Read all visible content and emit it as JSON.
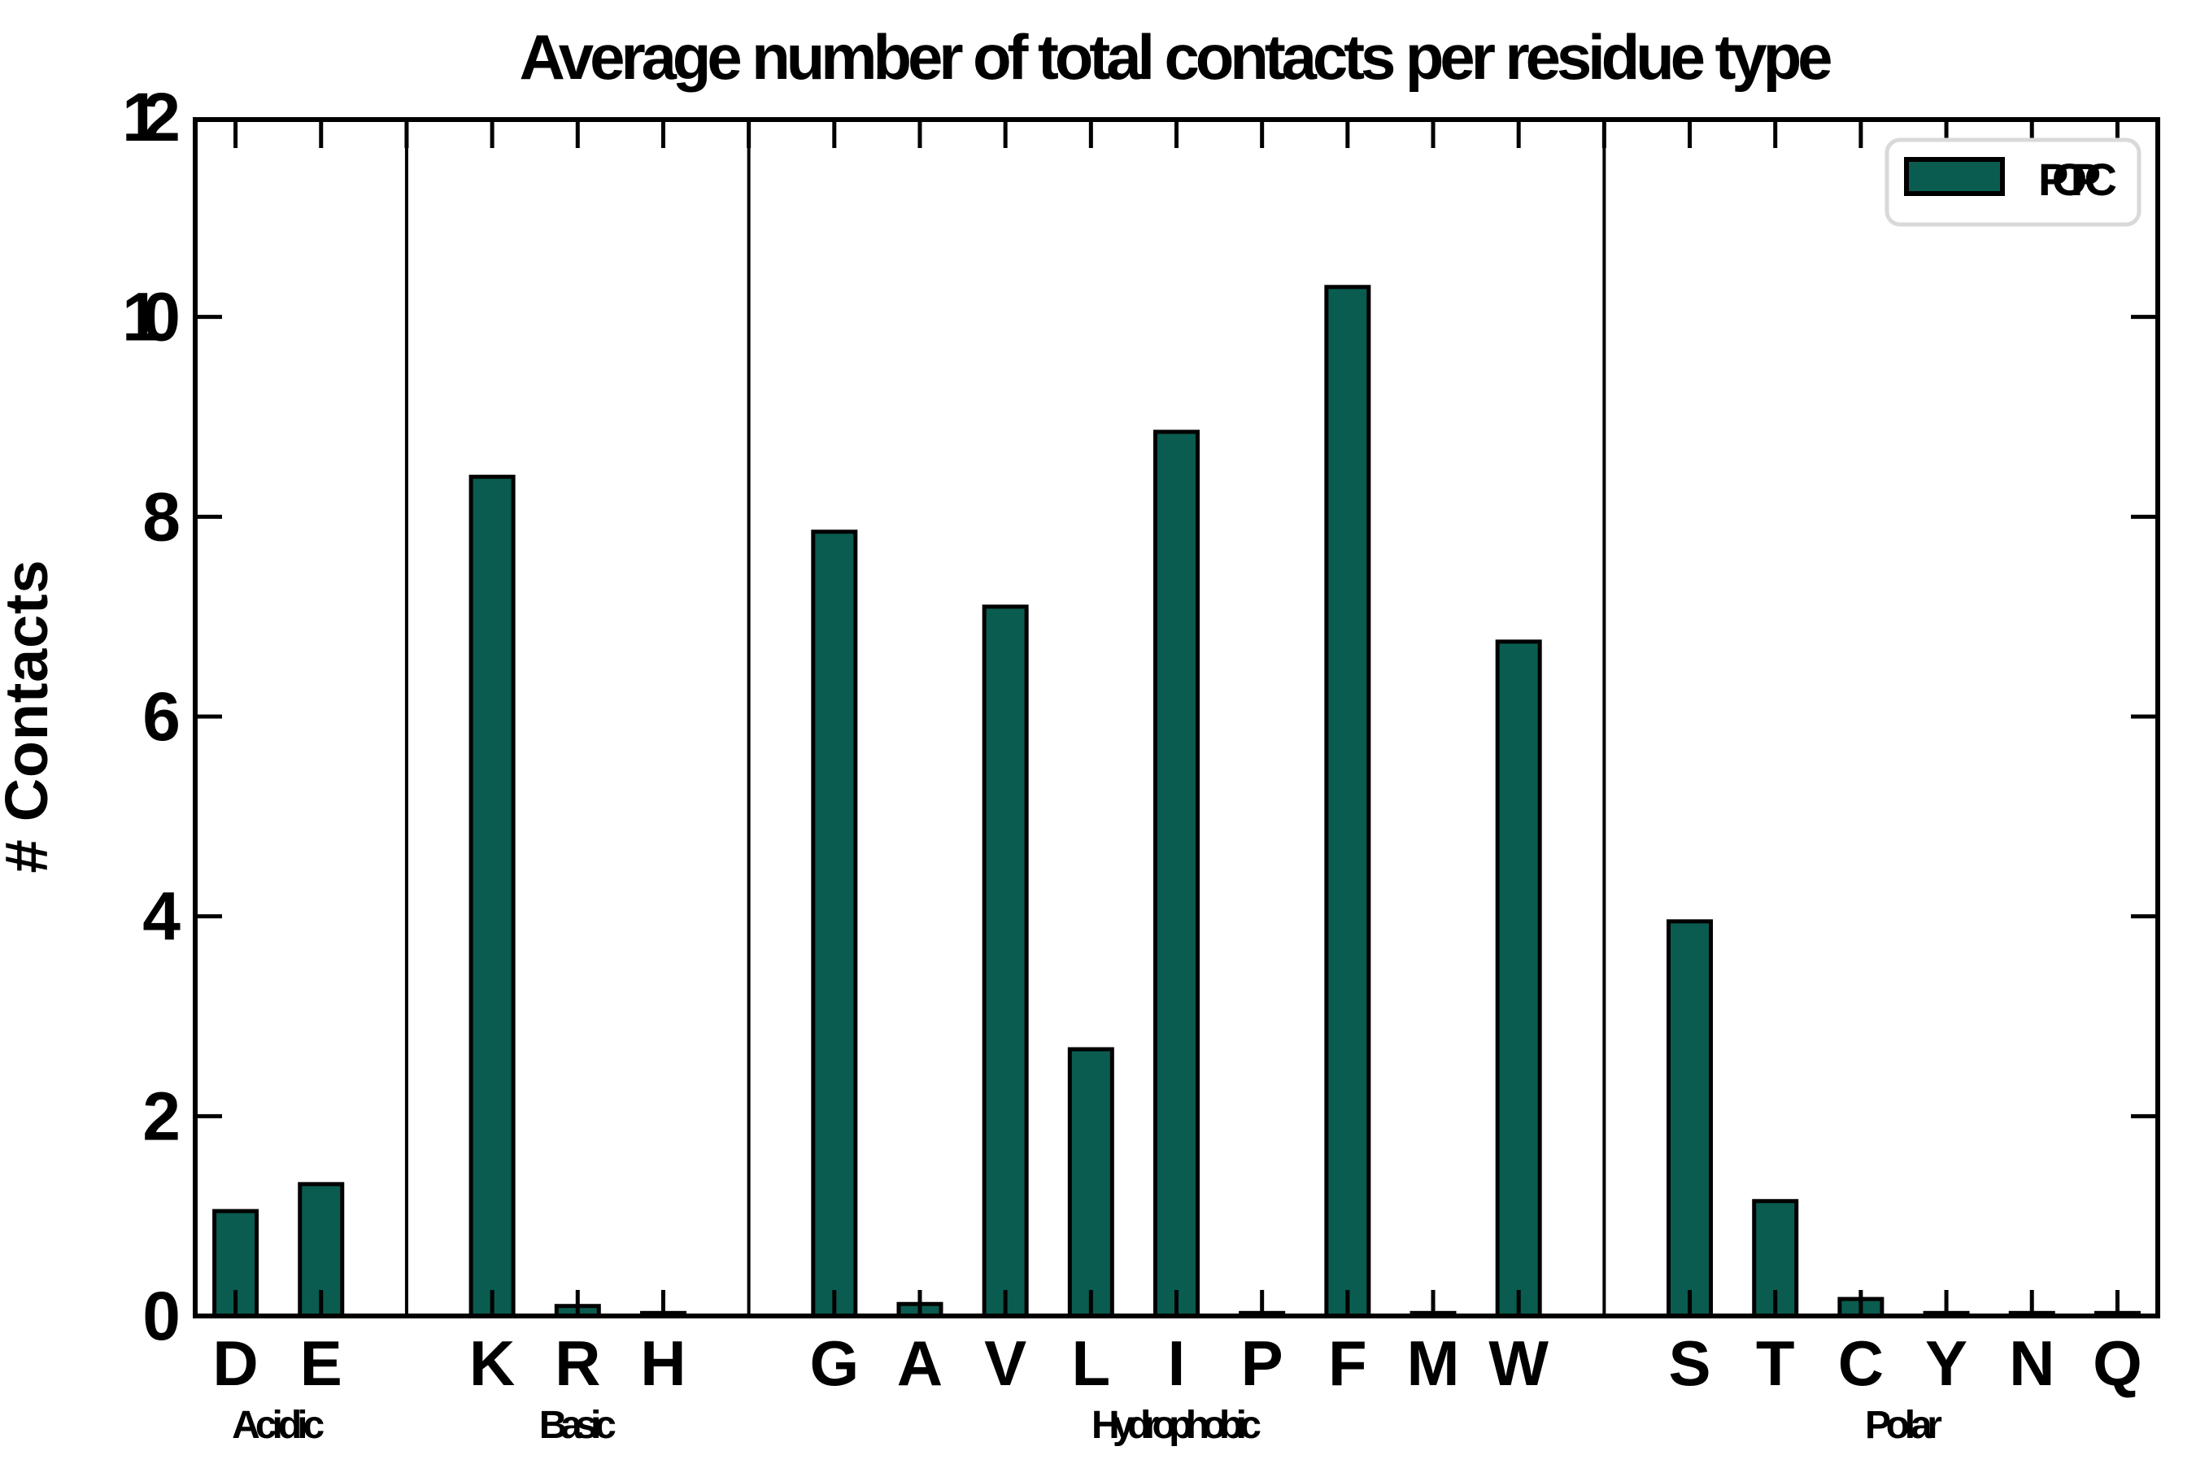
{
  "chart_data": {
    "type": "bar",
    "title": "Average number of total contacts per residue type",
    "xlabel": "",
    "ylabel": "# Contacts",
    "ylim": [
      0,
      12
    ],
    "yticks": [
      0,
      2,
      4,
      6,
      8,
      10,
      12
    ],
    "grid": false,
    "legend_label": "POPC",
    "legend_position": "upper right",
    "bar_color": "#0a5c50",
    "bar_edge_color": "#000000",
    "divider_color": "#000000",
    "legend_border_color": "#d9d9d9",
    "groups": [
      {
        "label": "Acidic",
        "categories": [
          "D",
          "E"
        ],
        "values": [
          1.05,
          1.32
        ]
      },
      {
        "label": "Basic",
        "categories": [
          "K",
          "R",
          "H"
        ],
        "values": [
          8.4,
          0.1,
          0.03
        ]
      },
      {
        "label": "Hydrophobic",
        "categories": [
          "G",
          "A",
          "V",
          "L",
          "I",
          "P",
          "F",
          "M",
          "W"
        ],
        "values": [
          7.85,
          0.12,
          7.1,
          2.67,
          8.85,
          0.03,
          10.3,
          0.03,
          6.75
        ]
      },
      {
        "label": "Polar",
        "categories": [
          "S",
          "T",
          "C",
          "Y",
          "N",
          "Q"
        ],
        "values": [
          3.95,
          1.15,
          0.17,
          0.03,
          0.03,
          0.03
        ]
      }
    ]
  }
}
